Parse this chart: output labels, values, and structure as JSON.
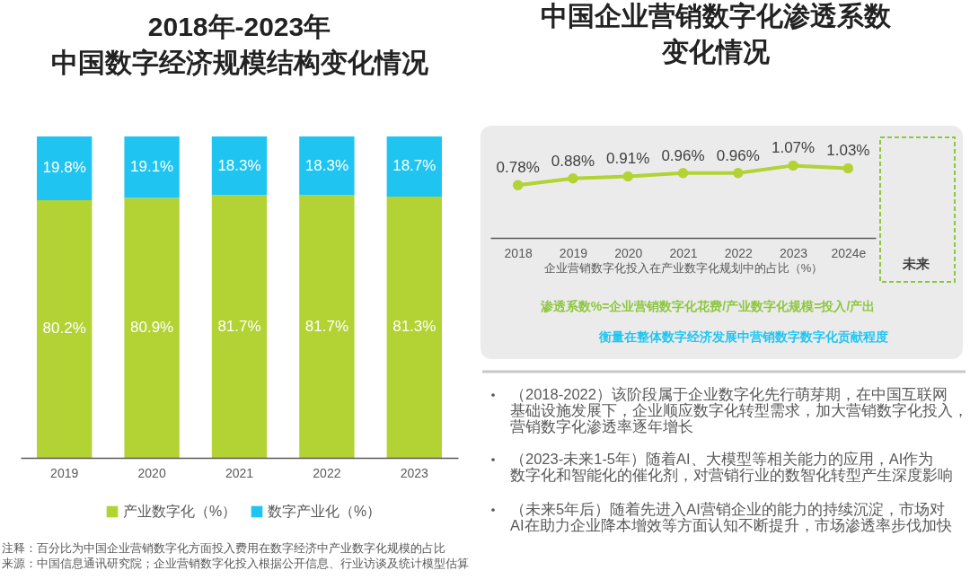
{
  "chart_data": [
    {
      "type": "bar",
      "title": "2018年-2023年中国数字经济规模结构变化情况",
      "categories": [
        "2019",
        "2020",
        "2021",
        "2022",
        "2023"
      ],
      "stacked": true,
      "series": [
        {
          "name": "产业数字化（%）",
          "color": "#b3d234",
          "values": [
            80.2,
            80.9,
            81.7,
            81.7,
            81.3
          ],
          "value_labels": [
            "80.2%",
            "80.9%",
            "81.7%",
            "81.7%",
            "81.3%"
          ]
        },
        {
          "name": "数字产业化（%）",
          "color": "#1fc5f0",
          "values": [
            19.8,
            19.1,
            18.3,
            18.3,
            18.7
          ],
          "value_labels": [
            "19.8%",
            "19.1%",
            "18.3%",
            "18.3%",
            "18.7%"
          ]
        }
      ],
      "ylim": [
        0,
        100
      ],
      "tick_labels": "x",
      "legend": "bottom",
      "annotations": [
        "注释：百分比为中国企业营销数字化方面投入费用在数字经济中产业数字化规模的占比",
        "来源：中国信息通讯研究院；企业营销数字化投入根据公开信息、行业访谈及统计模型估算"
      ]
    },
    {
      "type": "line",
      "title": "中国企业营销数字化渗透系数变化情况",
      "xlabel": "企业营销数字化投入在产业数字化规划中的占比（%）",
      "categories": [
        "2018",
        "2019",
        "2020",
        "2021",
        "2022",
        "2023",
        "2024e"
      ],
      "values": [
        0.78,
        0.88,
        0.91,
        0.96,
        0.96,
        1.07,
        1.03
      ],
      "value_labels": [
        "0.78%",
        "0.88%",
        "0.91%",
        "0.96%",
        "0.96%",
        "1.07%",
        "1.03%"
      ],
      "color": "#b3d234",
      "marker": "circle",
      "tick_labels": "x",
      "annotations": [
        "未来",
        "渗透系数%=企业营销数字化花费/产业数字化规模=投入/产出",
        "衡量在整体数字经济发展中营销数字数字化贡献程度",
        "（2018-2022）该阶段属于企业数字化先行萌芽期，在中国互联网基础设施发展下，企业顺应数字化转型需求，加大营销数字化投入，营销数字化渗透率逐年增长",
        "（2023-未来1-5年）随着AI、大模型等相关能力的应用，AI作为数字化和智能化的催化剂，对营销行业的数智化转型产生深度影响",
        "（未来5年后）随着先进入AI营销企业的能力的持续沉淀，市场对AI在助力企业降本增效等方面认知不断提升，市场渗透率步伐加快"
      ]
    }
  ]
}
